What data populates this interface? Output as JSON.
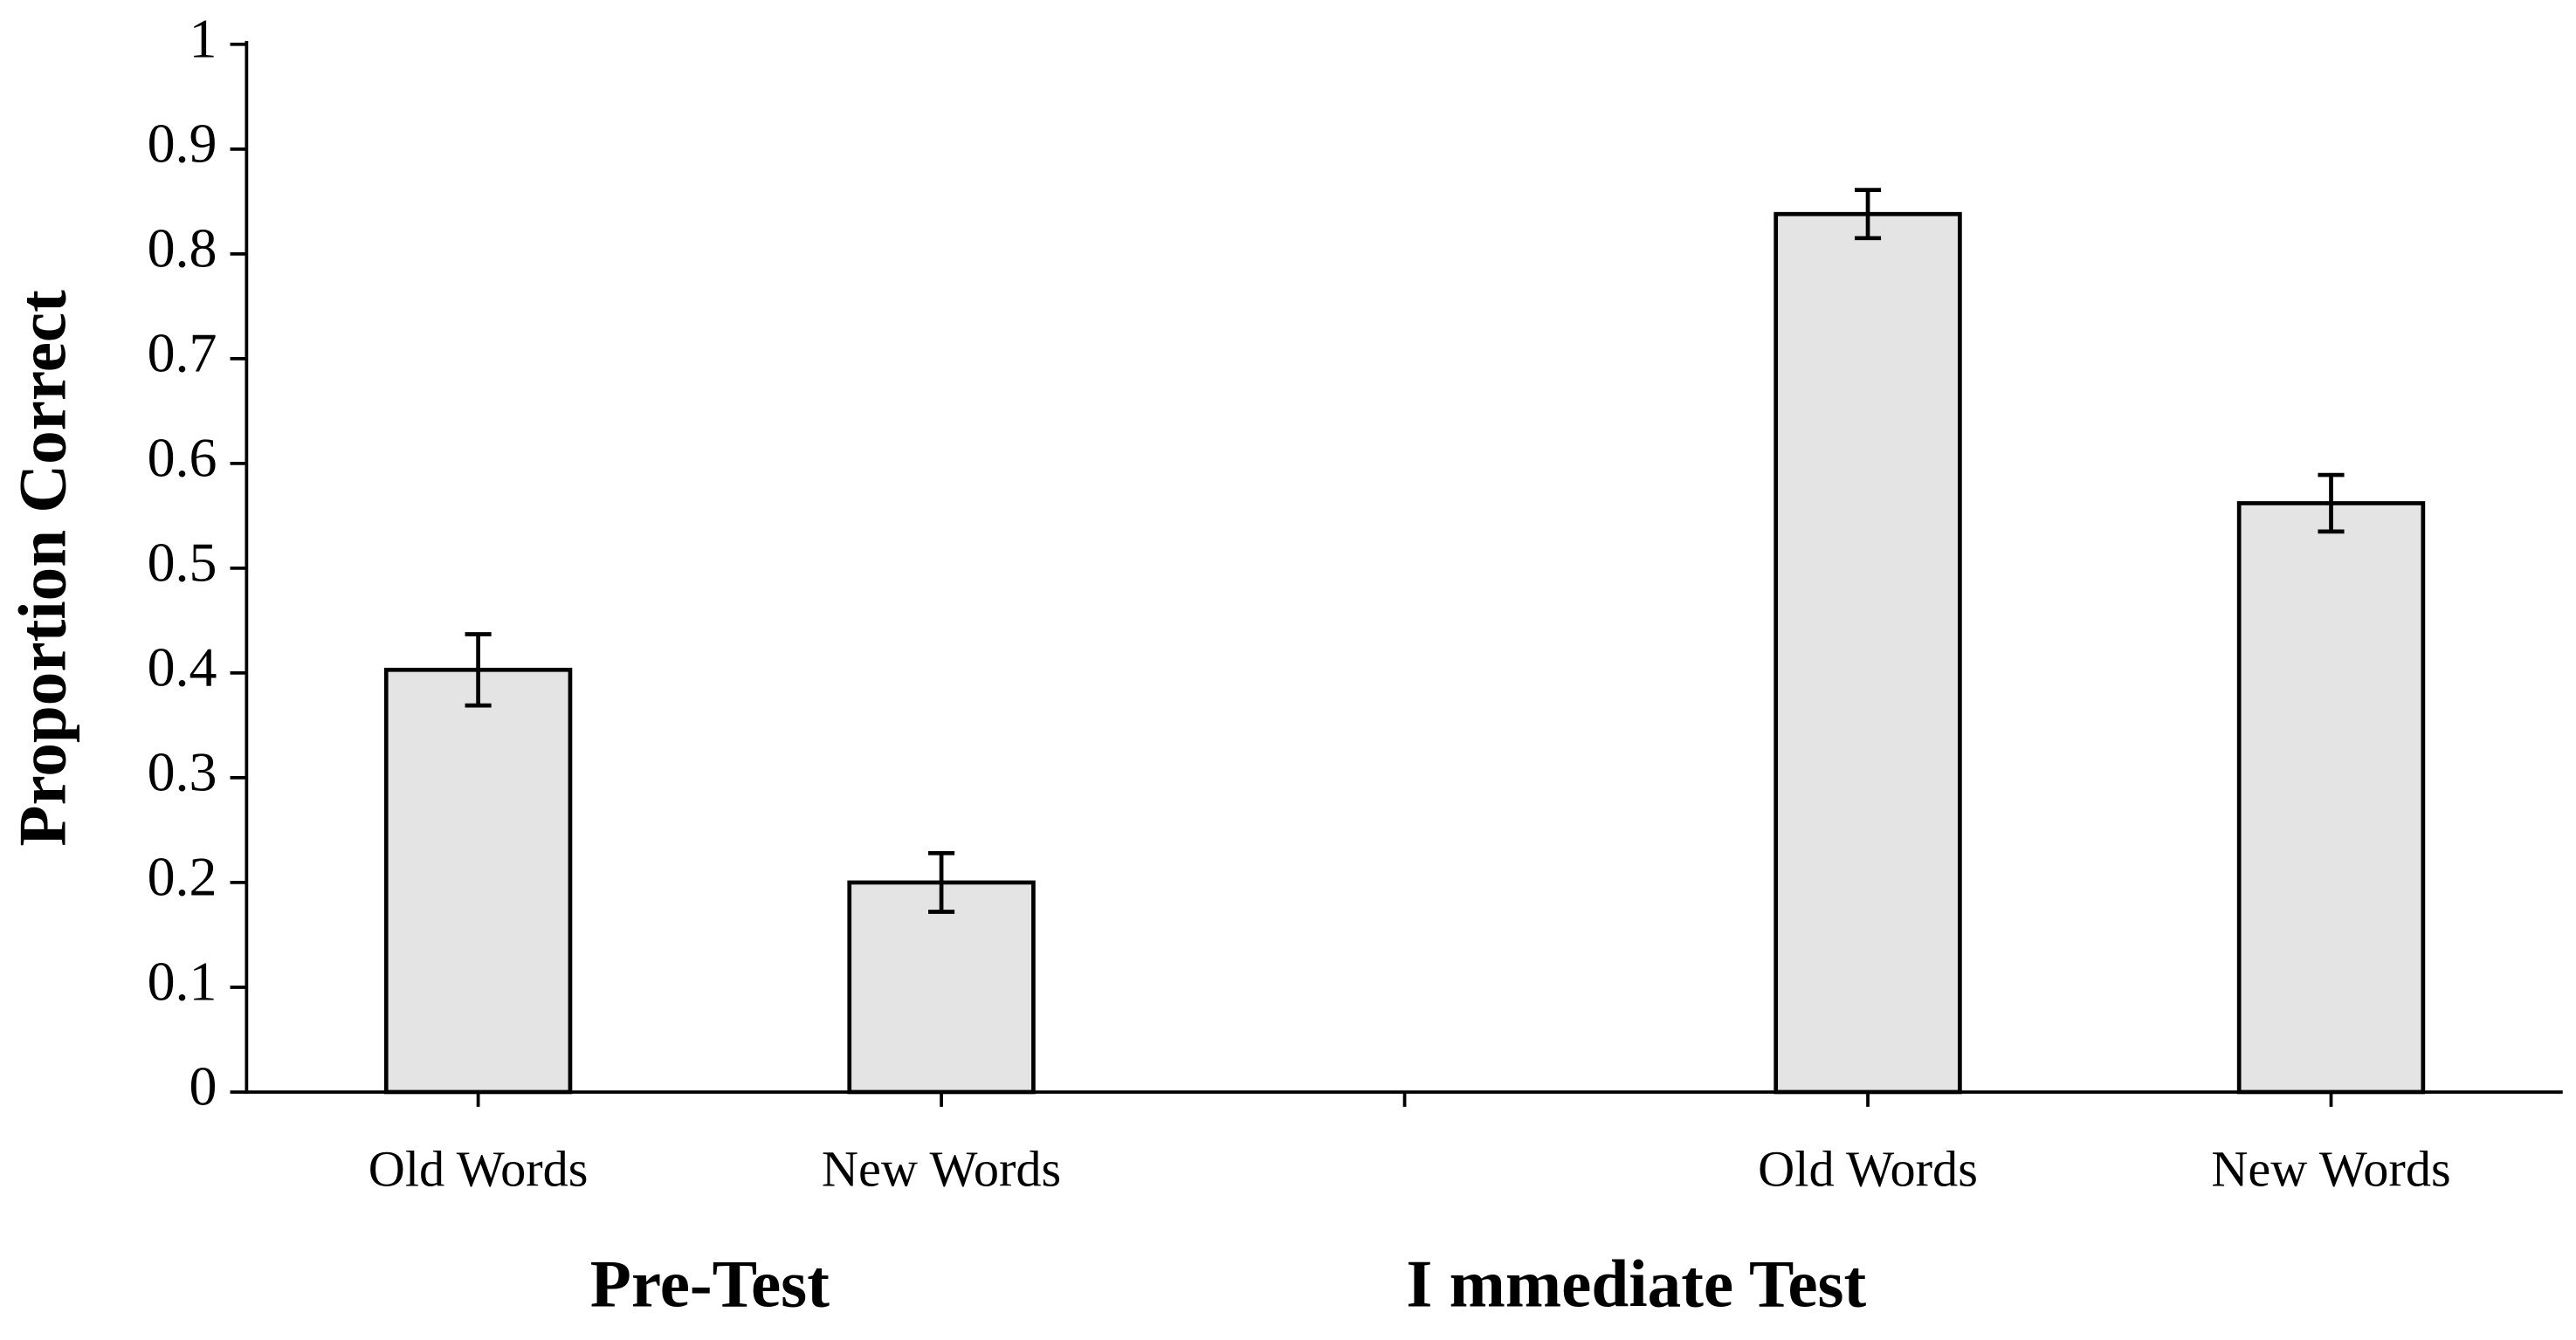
{
  "chart_data": {
    "type": "bar",
    "y_label": "Proportion Correct",
    "categories": [
      "Old Words",
      "New Words",
      null,
      "Old Words",
      "New Words"
    ],
    "groups": [
      "Pre-Test",
      "I mmediate Test"
    ],
    "values": [
      0.403,
      0.2,
      null,
      0.838,
      0.562
    ],
    "errors": [
      0.034,
      0.028,
      null,
      0.023,
      0.027
    ],
    "color": "#e4e4e4",
    "ylim": [
      0,
      1
    ],
    "yticks": [
      0,
      0.1,
      0.2,
      0.3,
      0.4,
      0.5,
      0.6,
      0.7,
      0.8,
      0.9,
      1
    ]
  }
}
